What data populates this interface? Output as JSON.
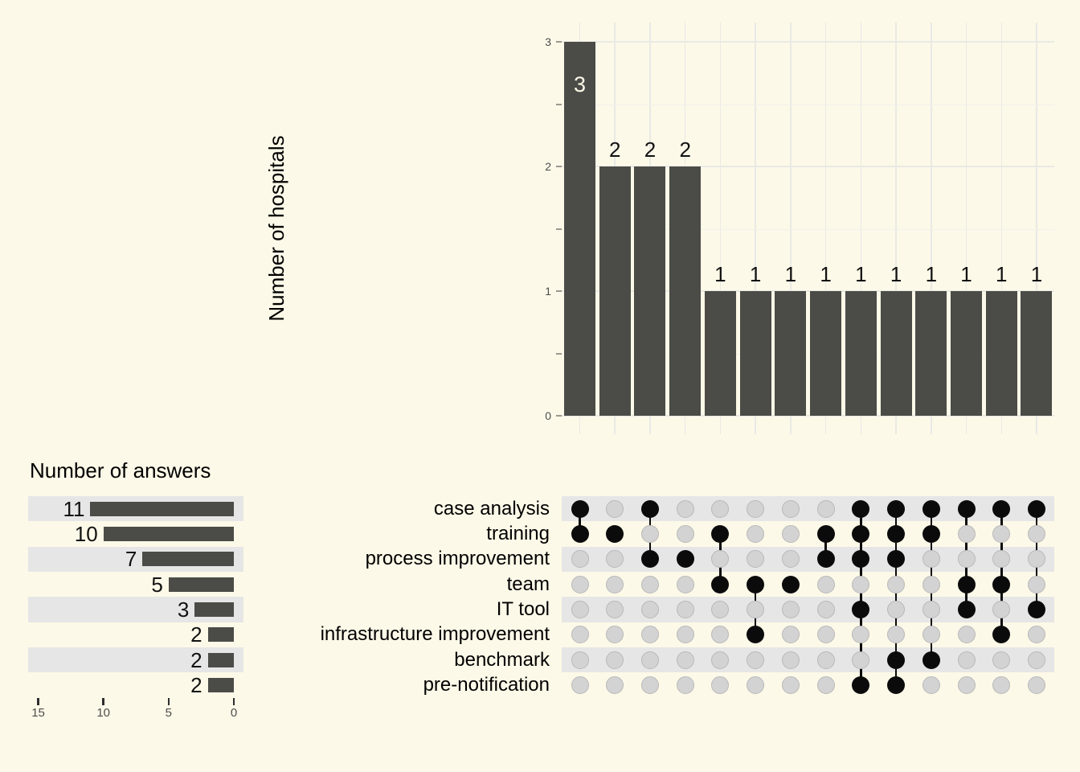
{
  "page": {
    "background_color": "#fdf9e8",
    "bar_color": "#4b4b47",
    "stripe_color": "#e6e6e6",
    "filled_dot_color": "#0b0b0b",
    "empty_dot_color": "#d3d3d3"
  },
  "chart_data": {
    "type": "upset",
    "intersection_chart": {
      "type": "bar",
      "ylabel": "Number of hospitals",
      "y_ticks": [
        "0",
        "1",
        "2",
        "3"
      ],
      "ylim": [
        0,
        3.15
      ],
      "grid": true,
      "values": [
        3,
        2,
        2,
        2,
        1,
        1,
        1,
        1,
        1,
        1,
        1,
        1,
        1,
        1
      ]
    },
    "set_size_chart": {
      "type": "bar",
      "title": "Number of answers",
      "x_ticks": [
        "15",
        "10",
        "5",
        "0"
      ],
      "xlim": [
        16.5,
        0
      ],
      "values": [
        11,
        10,
        7,
        5,
        3,
        2,
        2,
        2
      ]
    },
    "sets": [
      {
        "label": "case analysis",
        "size": 11
      },
      {
        "label": "training",
        "size": 10
      },
      {
        "label": "process improvement",
        "size": 7
      },
      {
        "label": "team",
        "size": 5
      },
      {
        "label": "IT tool",
        "size": 3
      },
      {
        "label": "infrastructure improvement",
        "size": 2
      },
      {
        "label": "benchmark",
        "size": 2
      },
      {
        "label": "pre-notification",
        "size": 2
      }
    ],
    "intersections": [
      {
        "size": 3,
        "sets": [
          "case analysis",
          "training"
        ]
      },
      {
        "size": 2,
        "sets": [
          "training"
        ]
      },
      {
        "size": 2,
        "sets": [
          "case analysis",
          "process improvement"
        ]
      },
      {
        "size": 2,
        "sets": [
          "process improvement"
        ]
      },
      {
        "size": 1,
        "sets": [
          "training",
          "team"
        ]
      },
      {
        "size": 1,
        "sets": [
          "team",
          "infrastructure improvement"
        ]
      },
      {
        "size": 1,
        "sets": [
          "team"
        ]
      },
      {
        "size": 1,
        "sets": [
          "training",
          "process improvement"
        ]
      },
      {
        "size": 1,
        "sets": [
          "case analysis",
          "training",
          "process improvement",
          "IT tool",
          "pre-notification"
        ]
      },
      {
        "size": 1,
        "sets": [
          "case analysis",
          "training",
          "process improvement",
          "benchmark",
          "pre-notification"
        ]
      },
      {
        "size": 1,
        "sets": [
          "case analysis",
          "training",
          "benchmark"
        ]
      },
      {
        "size": 1,
        "sets": [
          "case analysis",
          "team",
          "IT tool"
        ]
      },
      {
        "size": 1,
        "sets": [
          "case analysis",
          "team",
          "infrastructure improvement"
        ]
      },
      {
        "size": 1,
        "sets": [
          "case analysis",
          "IT tool"
        ]
      }
    ]
  }
}
